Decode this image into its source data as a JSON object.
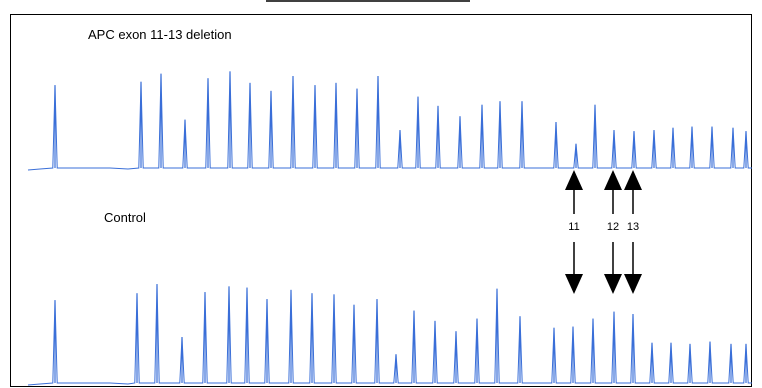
{
  "chart_data": [
    {
      "type": "line",
      "title": "APC exon 11-13 deletion",
      "color": "#3a6fd8",
      "peaks": [
        {
          "x": 55,
          "h": 0.72
        },
        {
          "x": 141,
          "h": 0.75
        },
        {
          "x": 161,
          "h": 0.82
        },
        {
          "x": 185,
          "h": 0.42
        },
        {
          "x": 208,
          "h": 0.78
        },
        {
          "x": 230,
          "h": 0.84
        },
        {
          "x": 250,
          "h": 0.74
        },
        {
          "x": 271,
          "h": 0.67
        },
        {
          "x": 293,
          "h": 0.8
        },
        {
          "x": 315,
          "h": 0.72
        },
        {
          "x": 336,
          "h": 0.74
        },
        {
          "x": 357,
          "h": 0.69
        },
        {
          "x": 378,
          "h": 0.8
        },
        {
          "x": 400,
          "h": 0.33
        },
        {
          "x": 418,
          "h": 0.62
        },
        {
          "x": 438,
          "h": 0.54
        },
        {
          "x": 460,
          "h": 0.45
        },
        {
          "x": 482,
          "h": 0.55
        },
        {
          "x": 500,
          "h": 0.58
        },
        {
          "x": 522,
          "h": 0.58
        },
        {
          "x": 556,
          "h": 0.4
        },
        {
          "x": 576,
          "h": 0.21
        },
        {
          "x": 595,
          "h": 0.55
        },
        {
          "x": 614,
          "h": 0.33
        },
        {
          "x": 634,
          "h": 0.32
        },
        {
          "x": 654,
          "h": 0.33
        },
        {
          "x": 673,
          "h": 0.35
        },
        {
          "x": 692,
          "h": 0.36
        },
        {
          "x": 712,
          "h": 0.36
        },
        {
          "x": 733,
          "h": 0.35
        },
        {
          "x": 746,
          "h": 0.32
        }
      ]
    },
    {
      "type": "line",
      "title": "Control",
      "color": "#3a6fd8",
      "peaks": [
        {
          "x": 55,
          "h": 0.72
        },
        {
          "x": 137,
          "h": 0.78
        },
        {
          "x": 157,
          "h": 0.86
        },
        {
          "x": 182,
          "h": 0.4
        },
        {
          "x": 205,
          "h": 0.79
        },
        {
          "x": 229,
          "h": 0.84
        },
        {
          "x": 247,
          "h": 0.83
        },
        {
          "x": 267,
          "h": 0.73
        },
        {
          "x": 291,
          "h": 0.81
        },
        {
          "x": 312,
          "h": 0.78
        },
        {
          "x": 334,
          "h": 0.77
        },
        {
          "x": 354,
          "h": 0.68
        },
        {
          "x": 377,
          "h": 0.73
        },
        {
          "x": 396,
          "h": 0.25
        },
        {
          "x": 414,
          "h": 0.63
        },
        {
          "x": 435,
          "h": 0.54
        },
        {
          "x": 456,
          "h": 0.45
        },
        {
          "x": 477,
          "h": 0.56
        },
        {
          "x": 497,
          "h": 0.82
        },
        {
          "x": 520,
          "h": 0.58
        },
        {
          "x": 554,
          "h": 0.48
        },
        {
          "x": 573,
          "h": 0.49
        },
        {
          "x": 593,
          "h": 0.56
        },
        {
          "x": 614,
          "h": 0.62
        },
        {
          "x": 633,
          "h": 0.6
        },
        {
          "x": 652,
          "h": 0.35
        },
        {
          "x": 671,
          "h": 0.35
        },
        {
          "x": 690,
          "h": 0.34
        },
        {
          "x": 710,
          "h": 0.36
        },
        {
          "x": 731,
          "h": 0.34
        },
        {
          "x": 746,
          "h": 0.34
        }
      ]
    }
  ],
  "annotations": {
    "arrows": [
      {
        "label": "11",
        "x": 574
      },
      {
        "label": "12",
        "x": 613
      },
      {
        "label": "13",
        "x": 633
      }
    ]
  }
}
